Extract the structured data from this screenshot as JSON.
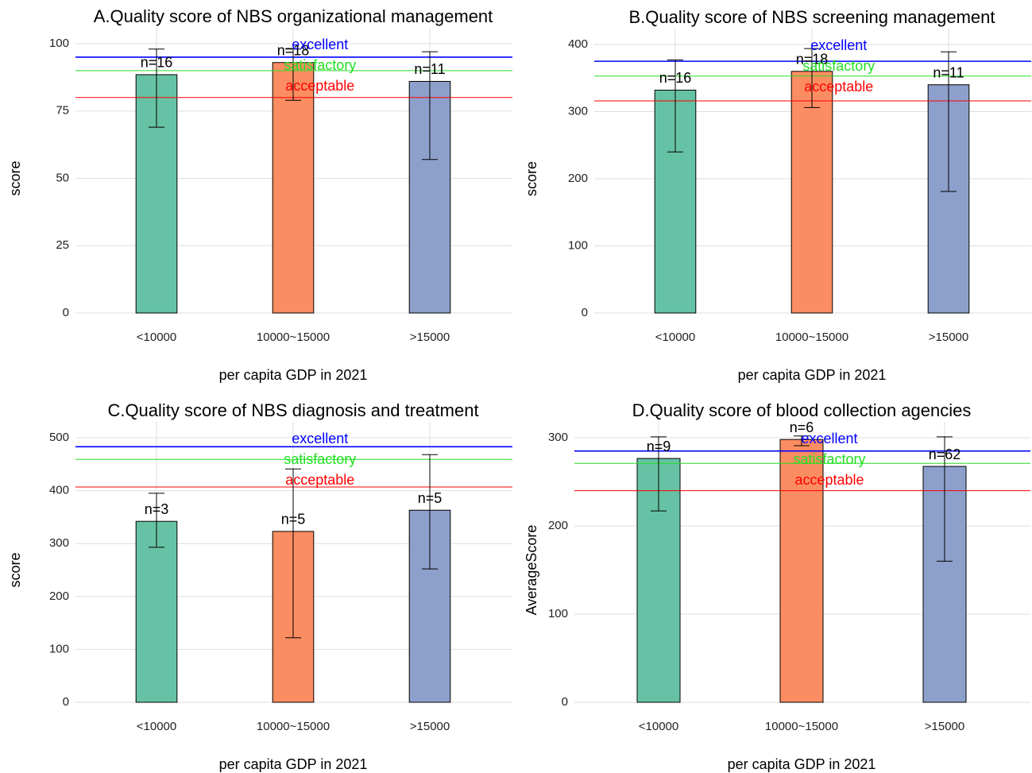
{
  "chart_data": [
    {
      "type": "bar",
      "title": "A.Quality score of NBS organizational management",
      "xlabel": "per capita GDP in 2021",
      "ylabel": "score",
      "categories": [
        "<10000",
        "10000~15000",
        ">15000"
      ],
      "values": [
        88.5,
        93,
        86
      ],
      "errors": [
        [
          69,
          98
        ],
        [
          79,
          98
        ],
        [
          57,
          97
        ]
      ],
      "bar_labels": [
        "n=16",
        "n=18",
        "n=11"
      ],
      "colors": [
        "#66c2a5",
        "#fc8d62",
        "#8da0cb"
      ],
      "reference_lines": [
        {
          "name": "excellent",
          "value": 95,
          "color": "#0000ff"
        },
        {
          "name": "satisfactory",
          "value": 90,
          "color": "#22e022"
        },
        {
          "name": "acceptable",
          "value": 80,
          "color": "#ff0000"
        }
      ],
      "ylim": [
        0,
        100
      ],
      "yticks": [
        0,
        25,
        50,
        75,
        100
      ],
      "grid": true
    },
    {
      "type": "bar",
      "title": "B.Quality score of NBS screening management",
      "xlabel": "per capita GDP in 2021",
      "ylabel": "score",
      "categories": [
        "<10000",
        "10000~15000",
        ">15000"
      ],
      "values": [
        332,
        360,
        340
      ],
      "errors": [
        [
          240,
          377
        ],
        [
          306,
          394
        ],
        [
          181,
          389
        ]
      ],
      "bar_labels": [
        "n=16",
        "n=18",
        "n=11"
      ],
      "colors": [
        "#66c2a5",
        "#fc8d62",
        "#8da0cb"
      ],
      "reference_lines": [
        {
          "name": "excellent",
          "value": 375,
          "color": "#0000ff"
        },
        {
          "name": "satisfactory",
          "value": 353,
          "color": "#22e022"
        },
        {
          "name": "acceptable",
          "value": 316,
          "color": "#ff0000"
        }
      ],
      "ylim": [
        0,
        400
      ],
      "yticks": [
        0,
        100,
        200,
        300,
        400
      ],
      "grid": true
    },
    {
      "type": "bar",
      "title": "C.Quality score of NBS diagnosis and treatment",
      "xlabel": "per capita GDP in 2021",
      "ylabel": "score",
      "categories": [
        "<10000",
        "10000~15000",
        ">15000"
      ],
      "values": [
        342,
        323,
        363
      ],
      "errors": [
        [
          293,
          395
        ],
        [
          122,
          441
        ],
        [
          252,
          468
        ]
      ],
      "bar_labels": [
        "n=3",
        "n=5",
        "n=5"
      ],
      "colors": [
        "#66c2a5",
        "#fc8d62",
        "#8da0cb"
      ],
      "reference_lines": [
        {
          "name": "excellent",
          "value": 483,
          "color": "#0000ff"
        },
        {
          "name": "satisfactory",
          "value": 459,
          "color": "#22e022"
        },
        {
          "name": "acceptable",
          "value": 407,
          "color": "#ff0000"
        }
      ],
      "ylim": [
        0,
        500
      ],
      "yticks": [
        0,
        100,
        200,
        300,
        400,
        500
      ],
      "grid": true
    },
    {
      "type": "bar",
      "title": "D.Quality score of blood collection agencies",
      "xlabel": "per capita GDP in 2021",
      "ylabel": "AverageScore",
      "categories": [
        "<10000",
        "10000~15000",
        ">15000"
      ],
      "values": [
        276.5,
        298,
        267.5
      ],
      "errors": [
        [
          217,
          301
        ],
        [
          291,
          302
        ],
        [
          160,
          301
        ]
      ],
      "bar_labels": [
        "n=9",
        "n=6",
        "n=62"
      ],
      "colors": [
        "#66c2a5",
        "#fc8d62",
        "#8da0cb"
      ],
      "reference_lines": [
        {
          "name": "excellent",
          "value": 285,
          "color": "#0000ff"
        },
        {
          "name": "satisfactory",
          "value": 271,
          "color": "#22e022"
        },
        {
          "name": "acceptable",
          "value": 240,
          "color": "#ff0000"
        }
      ],
      "ylim": [
        0,
        300
      ],
      "yticks": [
        0,
        100,
        200,
        300
      ],
      "grid": true
    }
  ]
}
